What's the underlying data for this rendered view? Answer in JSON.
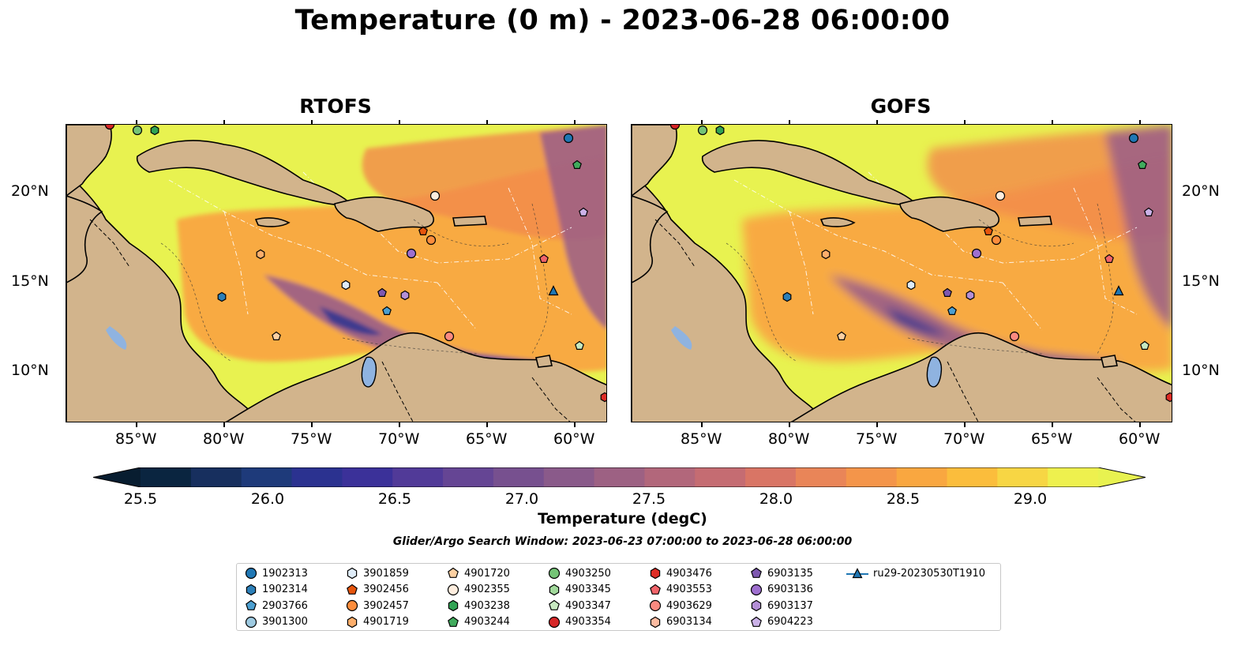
{
  "title": "Temperature (0 m) - 2023-06-28 06:00:00",
  "panels": [
    {
      "title": "RTOFS"
    },
    {
      "title": "GOFS"
    }
  ],
  "lon_ticks": [
    "85°W",
    "80°W",
    "75°W",
    "70°W",
    "65°W",
    "60°W"
  ],
  "lat_ticks": [
    "20°N",
    "15°N",
    "10°N"
  ],
  "colorbar": {
    "label": "Temperature (degC)",
    "ticks": [
      "25.5",
      "26.0",
      "26.5",
      "27.0",
      "27.5",
      "28.0",
      "28.5",
      "29.0"
    ],
    "colors": [
      "#0a2540",
      "#172f5e",
      "#1e3a7a",
      "#2b3290",
      "#3b3199",
      "#513a98",
      "#654594",
      "#77508f",
      "#8a5a8a",
      "#9d6183",
      "#b2677b",
      "#c56c72",
      "#d97565",
      "#e98558",
      "#f4954a",
      "#f9a740",
      "#fbbd3c",
      "#f7d644",
      "#eef04e"
    ],
    "under_color": "#081d30",
    "over_color": "#e8f250"
  },
  "search_window": "Glider/Argo Search Window: 2023-06-23 07:00:00 to 2023-06-28 06:00:00",
  "legend": [
    {
      "label": "1902313",
      "marker": "circle",
      "color": "#1f77b4"
    },
    {
      "label": "1902314",
      "marker": "hexagon",
      "color": "#2c7fb8"
    },
    {
      "label": "2903766",
      "marker": "pentagon",
      "color": "#4c9fd0"
    },
    {
      "label": "3901300",
      "marker": "circle",
      "color": "#9ecae1"
    },
    {
      "label": "3901859",
      "marker": "hexagon",
      "color": "#deebf7"
    },
    {
      "label": "3902456",
      "marker": "pentagon",
      "color": "#e6550d"
    },
    {
      "label": "3902457",
      "marker": "circle",
      "color": "#fd8d3c"
    },
    {
      "label": "4901719",
      "marker": "hexagon",
      "color": "#fdae6b"
    },
    {
      "label": "4901720",
      "marker": "pentagon",
      "color": "#fdd0a2"
    },
    {
      "label": "4902355",
      "marker": "circle",
      "color": "#feedde"
    },
    {
      "label": "4903238",
      "marker": "hexagon",
      "color": "#31a354"
    },
    {
      "label": "4903244",
      "marker": "pentagon",
      "color": "#41ab5d"
    },
    {
      "label": "4903250",
      "marker": "circle",
      "color": "#74c476"
    },
    {
      "label": "4903345",
      "marker": "hexagon",
      "color": "#a1d99b"
    },
    {
      "label": "4903347",
      "marker": "pentagon",
      "color": "#c7e9c0"
    },
    {
      "label": "4903354",
      "marker": "circle",
      "color": "#d62728"
    },
    {
      "label": "4903476",
      "marker": "hexagon",
      "color": "#de2d26"
    },
    {
      "label": "4903553",
      "marker": "pentagon",
      "color": "#f2646a"
    },
    {
      "label": "4903629",
      "marker": "circle",
      "color": "#fb8a80"
    },
    {
      "label": "6903134",
      "marker": "hexagon",
      "color": "#fcbba1"
    },
    {
      "label": "6903135",
      "marker": "pentagon",
      "color": "#7e58b0"
    },
    {
      "label": "6903136",
      "marker": "circle",
      "color": "#9e6fcf"
    },
    {
      "label": "6903137",
      "marker": "hexagon",
      "color": "#b48fd6"
    },
    {
      "label": "6904223",
      "marker": "pentagon",
      "color": "#cbb2e8"
    },
    {
      "label": "ru29-20230530T1910",
      "marker": "triangle-line",
      "color": "#1f77b4"
    }
  ],
  "colors": {
    "land": "#d2b48c",
    "lake": "#8fb3e0",
    "warm_sea": "#e8f250",
    "mid_sea": "#f9a740",
    "cool_sea": "#9a5e88",
    "cold_sea": "#2b3290"
  }
}
